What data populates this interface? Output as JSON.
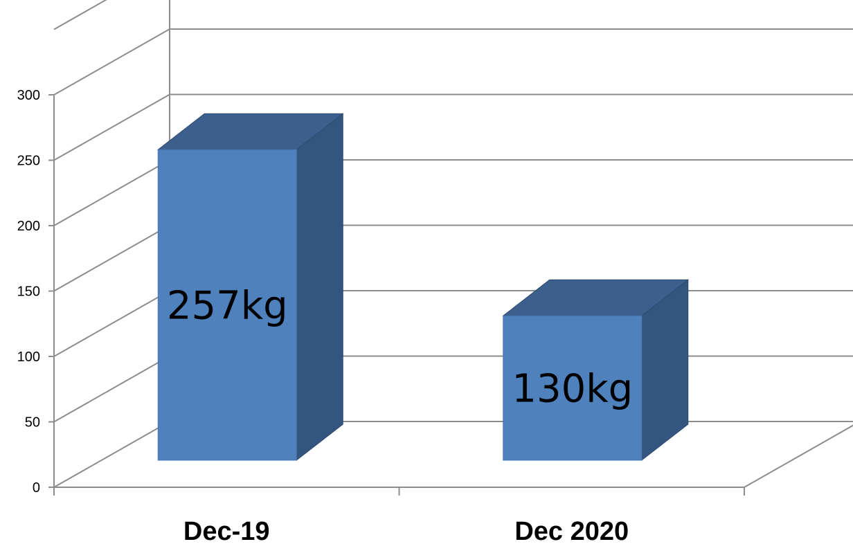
{
  "chart_data": {
    "type": "bar",
    "style": "3d-column",
    "categories": [
      "Dec-19",
      "Dec 2020"
    ],
    "values": [
      257,
      130
    ],
    "data_labels": [
      "257kg",
      "130kg"
    ],
    "ylim": [
      0,
      300
    ],
    "yticks": [
      "0",
      "50",
      "100",
      "150",
      "200",
      "250",
      "300"
    ],
    "grid": true,
    "legend": "none",
    "colors": {
      "bar_front": "#4F81BD",
      "bar_top": "#3C5F8D",
      "bar_side": "#34557F",
      "bar_edge": "#2F4A6E",
      "grid": "#8C8C8C",
      "axis": "#8C8C8C"
    }
  }
}
